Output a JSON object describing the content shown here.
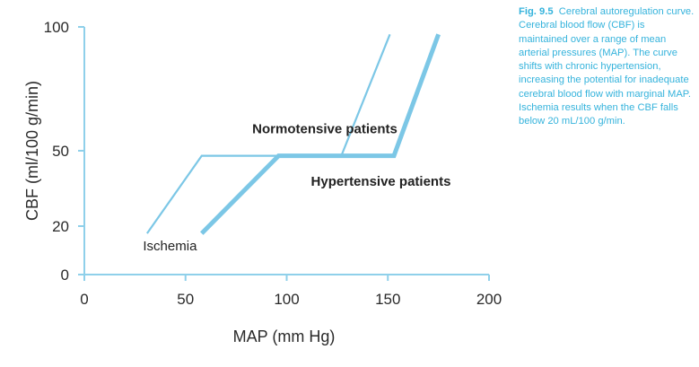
{
  "caption": {
    "figure_number": "Fig. 9.5",
    "text": "Cerebral autoregulation curve. Cerebral blood flow (CBF) is maintained over a range of mean arterial pressures (MAP). The curve shifts with chronic hypertension, increasing the potential for inadequate cerebral blood flow with marginal MAP. Ischemia results when the CBF falls below 20 mL/100 g/min."
  },
  "colors": {
    "line": "#7cc7e6",
    "axis": "#8fd0ea",
    "caption": "#35b3dc"
  },
  "chart_data": {
    "type": "line",
    "title": "",
    "xlabel": "MAP (mm Hg)",
    "ylabel": "CBF (ml/100 g/min)",
    "xlim": [
      0,
      200
    ],
    "xticks": [
      0,
      50,
      100,
      150,
      200
    ],
    "xtick_labels": [
      "0",
      "50",
      "100",
      "150",
      "200"
    ],
    "ylim": [
      0,
      100
    ],
    "yticks": [
      0,
      20,
      50,
      100
    ],
    "ytick_labels": [
      "0",
      "20",
      "50",
      "100"
    ],
    "grid": false,
    "series": [
      {
        "name": "Normotensive patients",
        "style": "thin",
        "points": [
          [
            31,
            17
          ],
          [
            58,
            48
          ],
          [
            127,
            48
          ],
          [
            151,
            97
          ]
        ]
      },
      {
        "name": "Hypertensive patients",
        "style": "thick",
        "points": [
          [
            58,
            17
          ],
          [
            96,
            48
          ],
          [
            153,
            48
          ],
          [
            175,
            97
          ]
        ]
      }
    ],
    "annotations": [
      {
        "text": "Normotensive patients",
        "x": 83,
        "y": 57,
        "bold": true
      },
      {
        "text": "Hypertensive patients",
        "x": 112,
        "y": 36,
        "bold": true
      },
      {
        "text": "Ischemia",
        "x": 29,
        "y": 10,
        "bold": false
      }
    ]
  }
}
